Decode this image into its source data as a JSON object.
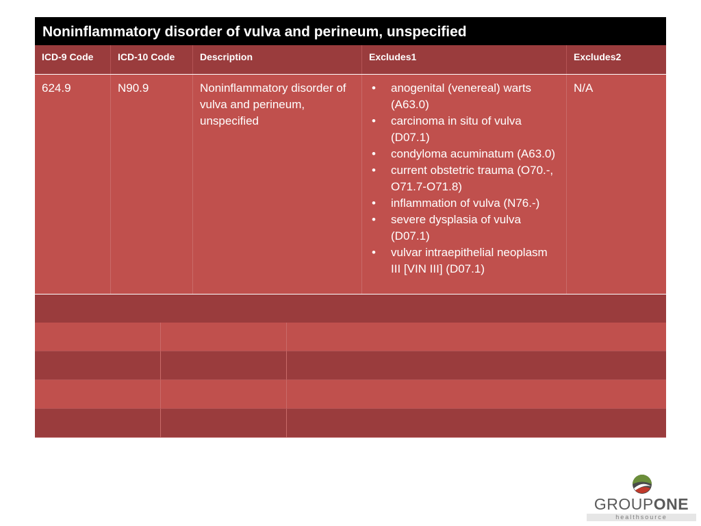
{
  "title": "Noninflammatory disorder of vulva and perineum, unspecified",
  "table": {
    "headers": [
      "ICD-9 Code",
      "ICD-10 Code",
      "Description",
      "Excludes1",
      "Excludes2"
    ],
    "row": {
      "icd9": "624.9",
      "icd10": "N90.9",
      "description": "Noninflammatory disorder of vulva and perineum, unspecified",
      "excludes1": [
        "anogenital (venereal) warts (A63.0)",
        "carcinoma in situ of vulva (D07.1)",
        "condyloma acuminatum (A63.0)",
        "current obstetric trauma (O70.-, O71.7-O71.8)",
        "inflammation of vulva (N76.-)",
        "severe dysplasia of vulva (D07.1)",
        "vulvar intraepithelial neoplasm III [VIN III] (D07.1)"
      ],
      "excludes2": "N/A"
    },
    "bullet": "•"
  },
  "logo": {
    "word1": "GROUP",
    "word2": "ONE",
    "sub": "healthsource",
    "colors": {
      "gray": "#5a5a5a",
      "green": "#6b8e3a",
      "red": "#c0392b"
    }
  },
  "colors": {
    "title_bg": "#000000",
    "header_bg": "#9a3c3d",
    "row_bg": "#c0504d",
    "text": "#ffffff"
  }
}
